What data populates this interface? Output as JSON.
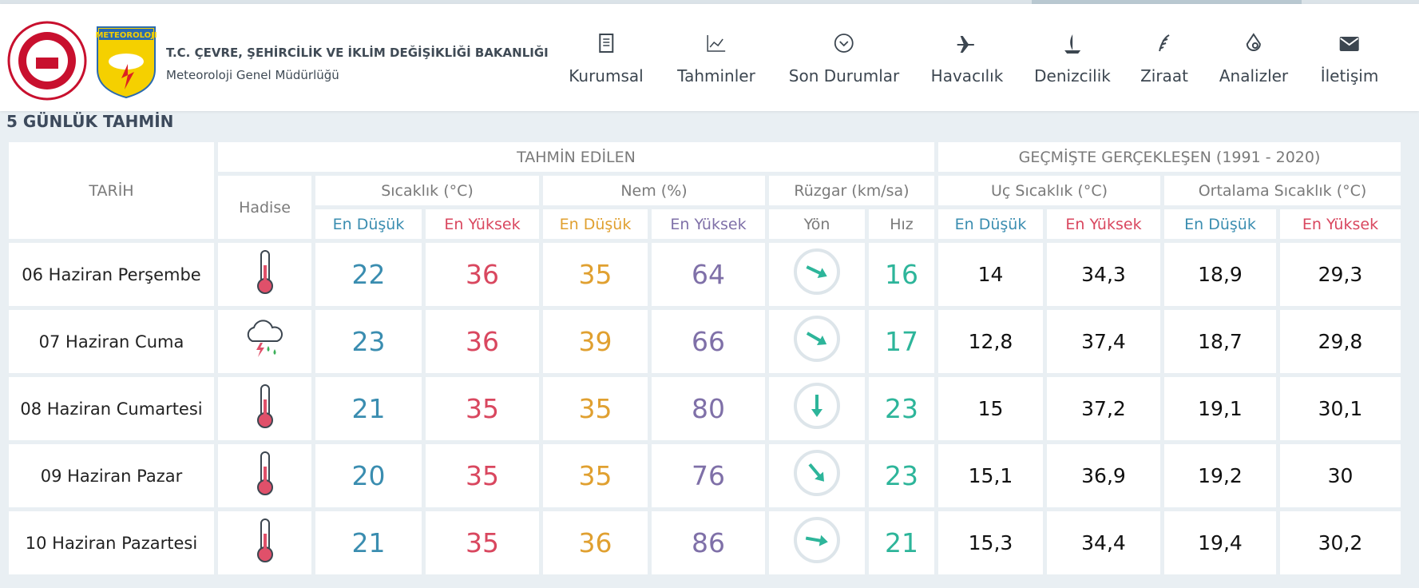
{
  "header": {
    "logo_text": "METEOROLOJI",
    "ministry": "T.C. ÇEVRE, ŞEHİRCİLİK VE İKLİM DEĞİŞİKLİĞİ BAKANLIĞI",
    "department": "Meteoroloji Genel Müdürlüğü",
    "nav": [
      "Kurumsal",
      "Tahminler",
      "Son Durumlar",
      "Havacılık",
      "Denizcilik",
      "Ziraat",
      "Analizler",
      "İletişim"
    ]
  },
  "title": "5 GÜNLÜK TAHMİN",
  "table": {
    "date_header": "TARİH",
    "event_header": "Hadise",
    "groups": [
      "TAHMİN EDİLEN",
      "GEÇMİŞTE GERÇEKLEŞEN (1991 - 2020)"
    ],
    "subgroups": [
      "Sıcaklık (°C)",
      "Nem (%)",
      "Rüzgar (km/sa)",
      "Uç Sıcaklık (°C)",
      "Ortalama Sıcaklık (°C)"
    ],
    "columns": [
      "En Düşük",
      "En Yüksek",
      "En Düşük",
      "En Yüksek",
      "Yön",
      "Hız",
      "En Düşük",
      "En Yüksek",
      "En Düşük",
      "En Yüksek"
    ],
    "rows": [
      [
        "06 Haziran Perşembe",
        "22",
        "36",
        "35",
        "64",
        "16",
        "14",
        "34,3",
        "18,9",
        "29,3"
      ],
      [
        "07 Haziran Cuma",
        "23",
        "36",
        "39",
        "66",
        "17",
        "12,8",
        "37,4",
        "18,7",
        "29,8"
      ],
      [
        "08 Haziran Cumartesi",
        "21",
        "35",
        "35",
        "80",
        "23",
        "15",
        "37,2",
        "19,1",
        "30,1"
      ],
      [
        "09 Haziran Pazar",
        "20",
        "35",
        "35",
        "76",
        "23",
        "15,1",
        "36,9",
        "19,2",
        "30"
      ],
      [
        "10 Haziran Pazartesi",
        "21",
        "35",
        "36",
        "86",
        "21",
        "15,3",
        "34,4",
        "19,4",
        "30,2"
      ]
    ]
  }
}
